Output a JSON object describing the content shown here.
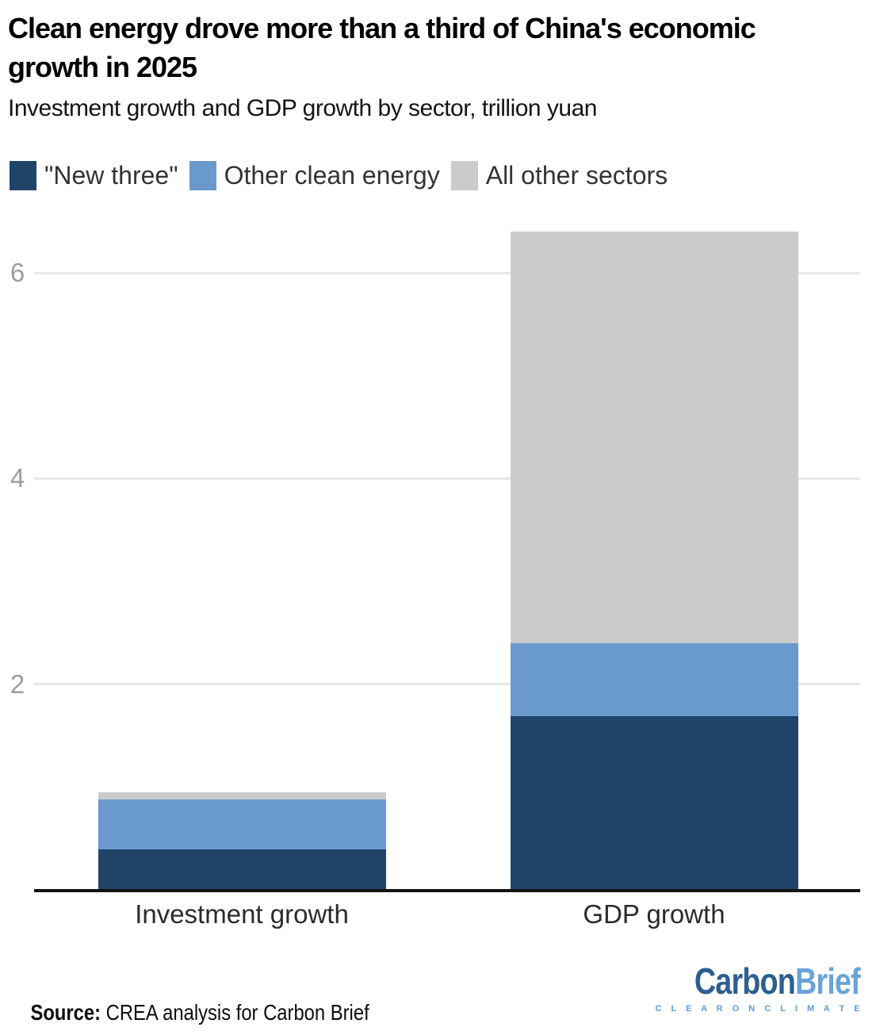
{
  "header": {
    "title": "Clean energy drove more than a third of China's economic growth in 2025",
    "subtitle": "Investment growth and GDP growth by sector, trillion yuan"
  },
  "legend": {
    "items": [
      {
        "label": "\"New three\"",
        "color": "#1f4468"
      },
      {
        "label": "Other clean energy",
        "color": "#6a99ce"
      },
      {
        "label": "All other sectors",
        "color": "#cbcbcb"
      }
    ]
  },
  "chart_data": {
    "type": "bar",
    "stacked": true,
    "title": "Clean energy drove more than a third of China's economic growth in 2025",
    "subtitle": "Investment growth and GDP growth by sector, trillion yuan",
    "categories": [
      "Investment growth",
      "GDP growth"
    ],
    "series": [
      {
        "name": "\"New three\"",
        "color": "#1f4468",
        "values": [
          0.39,
          1.69
        ]
      },
      {
        "name": "Other clean energy",
        "color": "#6a99ce",
        "values": [
          0.49,
          0.71
        ]
      },
      {
        "name": "All other sectors",
        "color": "#cbcbcb",
        "values": [
          0.07,
          4.0
        ]
      }
    ],
    "totals": [
      0.95,
      6.4
    ],
    "xlabel": "",
    "ylabel": "trillion yuan",
    "ylim": [
      0,
      6.5
    ],
    "yticks": [
      2,
      4,
      6
    ],
    "grid": true,
    "legend_position": "top"
  },
  "footer": {
    "source_label": "Source:",
    "source_text": " CREA analysis for Carbon Brief",
    "logo": {
      "part1": "Carbon",
      "part2": "Brief",
      "tagline": "C L E A R   O N   C L I M A T E"
    }
  },
  "colors": {
    "new_three": "#1f4468",
    "other_clean_energy": "#6a99ce",
    "all_other_sectors": "#cbcbcb",
    "gridline": "#e8e8e8",
    "axis": "#141414",
    "tick_text": "#9c9c9c",
    "logo_dark": "#2d5e90",
    "logo_light": "#6ba3d6"
  }
}
